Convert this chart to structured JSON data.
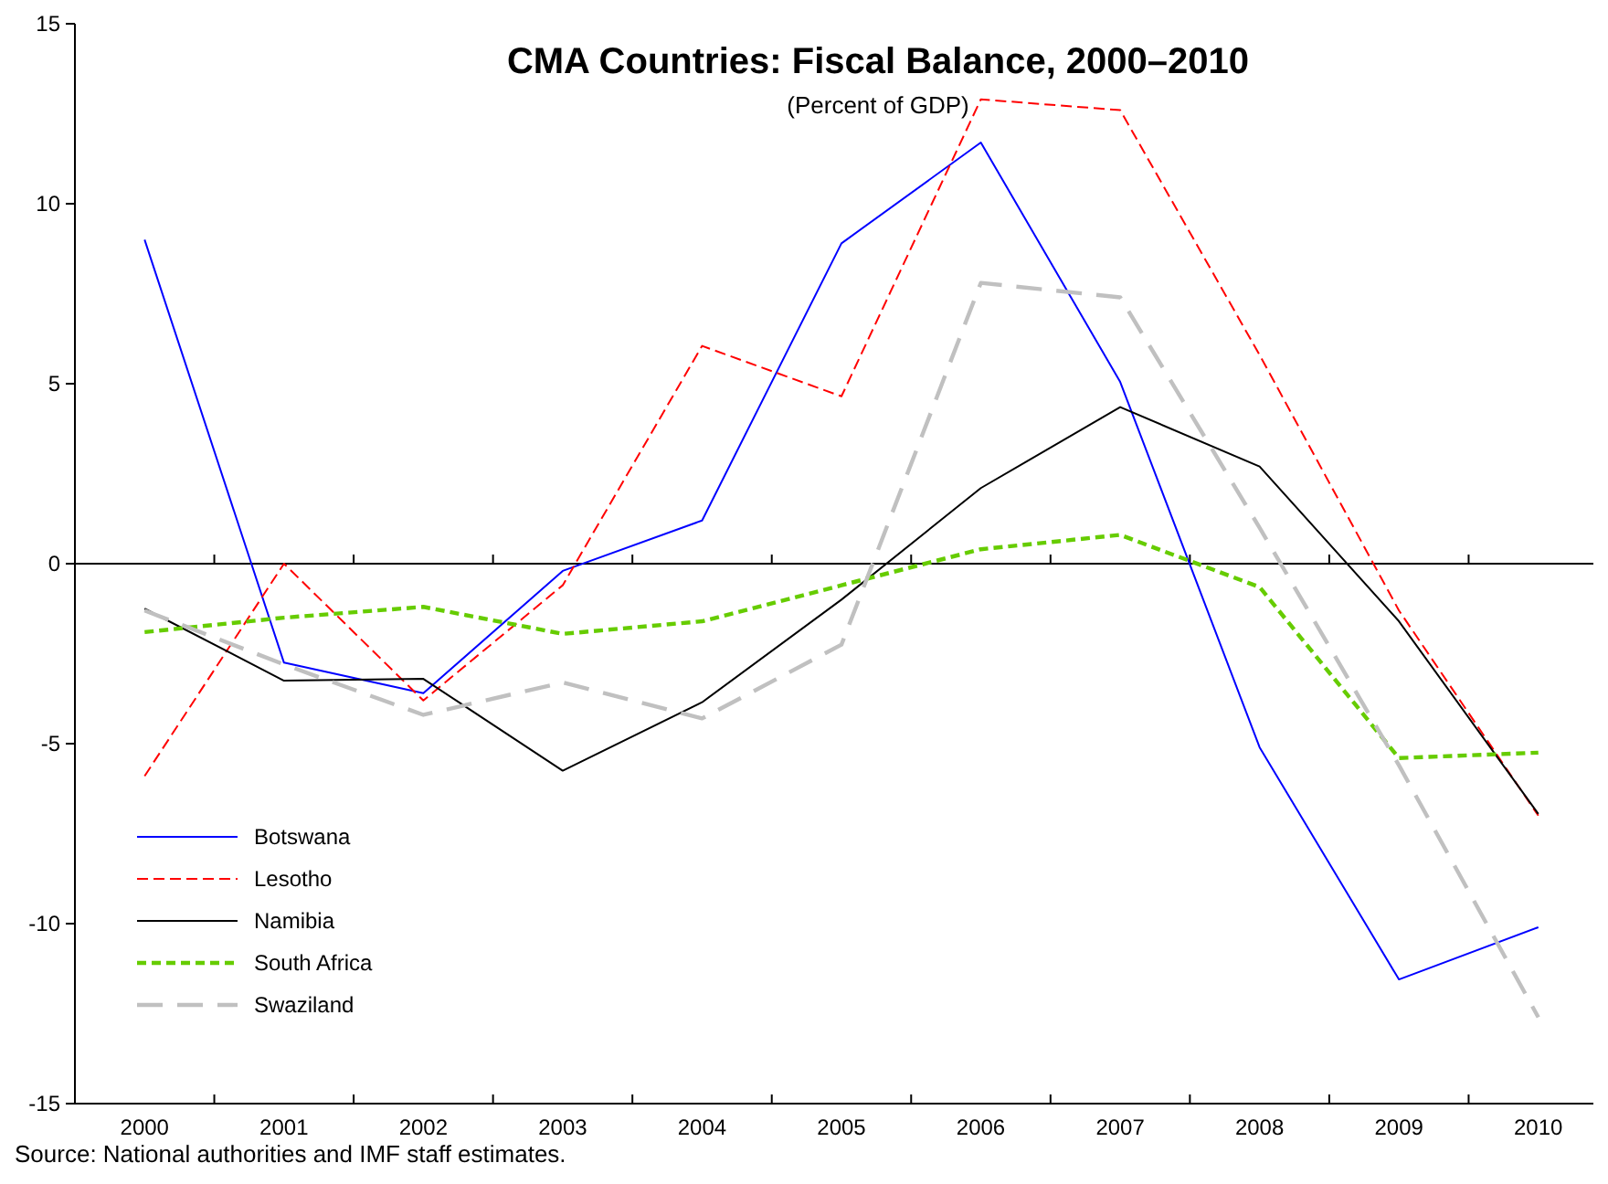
{
  "chart_data": {
    "type": "line",
    "title": "CMA Countries: Fiscal Balance, 2000–2010",
    "subtitle": "(Percent of GDP)",
    "categories": [
      "2000",
      "2001",
      "2002",
      "2003",
      "2004",
      "2005",
      "2006",
      "2007",
      "2008",
      "2009",
      "2010"
    ],
    "ylim": [
      -15,
      15
    ],
    "yticks": [
      -15,
      -10,
      -5,
      0,
      5,
      10,
      15
    ],
    "legend": "bottom left",
    "marker": "none",
    "ref_lines": [
      {
        "axis": "y",
        "value": 0,
        "color": "#000000"
      }
    ],
    "series": [
      {
        "name": "Botswana",
        "color": "#0000ff",
        "line_style": "solid",
        "values": [
          9.0,
          -2.75,
          -3.6,
          -0.2,
          1.2,
          8.9,
          11.7,
          5.05,
          -5.1,
          -11.55,
          -10.1
        ]
      },
      {
        "name": "Lesotho",
        "color": "#ff0000",
        "line_style": "dashed",
        "values": [
          -5.9,
          0.0,
          -3.8,
          -0.6,
          6.05,
          4.65,
          12.9,
          12.6,
          5.8,
          -1.3,
          -7.0
        ]
      },
      {
        "name": "Namibia",
        "color": "#000000",
        "line_style": "solid",
        "values": [
          -1.25,
          -3.25,
          -3.2,
          -5.75,
          -3.85,
          -1.0,
          2.1,
          4.35,
          2.7,
          -1.6,
          -6.95
        ]
      },
      {
        "name": "South Africa",
        "color": "#66cc00",
        "line_style": "dashed",
        "values": [
          -1.9,
          -1.5,
          -1.2,
          -1.95,
          -1.6,
          -0.6,
          0.4,
          0.8,
          -0.65,
          -5.4,
          -5.25
        ]
      },
      {
        "name": "Swaziland",
        "color": "#c0c0c0",
        "line_style": "dashed",
        "values": [
          -1.3,
          -2.8,
          -4.2,
          -3.3,
          -4.3,
          -2.25,
          7.8,
          7.4,
          1.0,
          -5.6,
          -12.6
        ]
      }
    ],
    "annotations": [
      "Source: National authorities and IMF staff estimates."
    ]
  }
}
